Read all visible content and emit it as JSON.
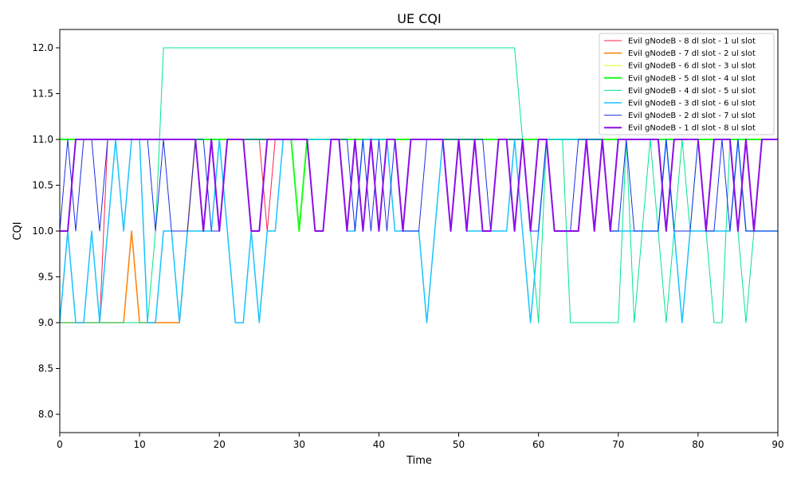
{
  "chart_data": {
    "type": "line",
    "title": "UE CQI",
    "xlabel": "Time",
    "ylabel": "CQI",
    "xlim": [
      0,
      90
    ],
    "ylim": [
      7.8,
      12.2
    ],
    "x_ticks": [
      0,
      10,
      20,
      30,
      40,
      50,
      60,
      70,
      80,
      90
    ],
    "y_ticks": [
      8.0,
      8.5,
      9.0,
      9.5,
      10.0,
      10.5,
      11.0,
      11.5,
      12.0
    ],
    "x_tick_labels": [
      "0",
      "10",
      "20",
      "30",
      "40",
      "50",
      "60",
      "70",
      "80",
      "90"
    ],
    "y_tick_labels": [
      "8.0",
      "8.5",
      "9.0",
      "9.5",
      "10.0",
      "10.5",
      "11.0",
      "11.5",
      "12.0"
    ],
    "grid": false,
    "legend_position": "upper right",
    "series": [
      {
        "name": "Evil gNodeB - 8 dl slot - 1 ul slot",
        "color": "#ff1f4c",
        "width": 1,
        "x": [
          0,
          1,
          2,
          4,
          5,
          6,
          7,
          20,
          21,
          24,
          25,
          26,
          27,
          90
        ],
        "y": [
          9,
          10,
          9,
          9,
          9,
          11,
          11,
          11,
          11,
          11,
          11,
          10,
          11,
          11
        ]
      },
      {
        "name": "Evil gNodeB - 7 dl slot - 2 ul slot",
        "color": "#ff8000",
        "width": 1.5,
        "x": [
          0,
          8,
          9,
          10,
          11,
          15,
          16,
          17,
          90
        ],
        "y": [
          9,
          9,
          10,
          9,
          9,
          9,
          10,
          11,
          11
        ]
      },
      {
        "name": "Evil gNodeB - 6 dl slot - 3 ul slot",
        "color": "#e6ff1a",
        "width": 1,
        "x": [
          0,
          90
        ],
        "y": [
          11,
          11
        ]
      },
      {
        "name": "Evil gNodeB - 5 dl slot - 4 ul slot",
        "color": "#1aff1a",
        "width": 2,
        "x": [
          0,
          29,
          30,
          31,
          90
        ],
        "y": [
          11,
          11,
          10,
          11,
          11
        ]
      },
      {
        "name": "Evil gNodeB - 4 dl slot - 5 ul slot",
        "color": "#00e68c",
        "width": 1,
        "x": [
          0,
          1,
          2,
          3,
          4,
          5,
          6,
          7,
          8,
          9,
          10,
          11,
          12,
          13,
          57,
          58,
          59,
          60,
          61,
          62,
          63,
          64,
          70,
          71,
          72,
          73,
          74,
          75,
          76,
          77,
          78,
          79,
          80,
          81,
          82,
          83,
          84,
          85,
          86,
          87,
          88,
          90
        ],
        "y": [
          9,
          9,
          9,
          9,
          9,
          9,
          9,
          9,
          9,
          9,
          9,
          9,
          10,
          12,
          12,
          11,
          10,
          9,
          11,
          11,
          11,
          9,
          9,
          11,
          9,
          10,
          11,
          10,
          9,
          10,
          11,
          10,
          11,
          10,
          9,
          9,
          11,
          10,
          9,
          10,
          11,
          11
        ]
      },
      {
        "name": "Evil gNodeB - 3 dl slot - 6 ul slot",
        "color": "#19c3ff",
        "width": 1.5,
        "x": [
          0,
          1,
          2,
          3,
          4,
          5,
          6,
          7,
          8,
          9,
          10,
          11,
          12,
          13,
          14,
          15,
          16,
          17,
          18,
          19,
          20,
          21,
          22,
          23,
          24,
          25,
          26,
          27,
          28,
          35,
          36,
          37,
          38,
          39,
          40,
          41,
          42,
          45,
          46,
          47,
          48,
          49,
          50,
          51,
          55,
          56,
          57,
          58,
          59,
          60,
          61,
          62,
          63,
          68,
          69,
          70,
          71,
          75,
          76,
          77,
          78,
          79,
          80,
          84,
          85,
          86,
          87,
          88,
          90
        ],
        "y": [
          9,
          10,
          9,
          9,
          10,
          9,
          10,
          11,
          10,
          11,
          11,
          9,
          9,
          10,
          10,
          9,
          10,
          10,
          10,
          10,
          11,
          10,
          9,
          9,
          10,
          9,
          10,
          10,
          11,
          11,
          10,
          10,
          11,
          11,
          11,
          11,
          10,
          10,
          9,
          10,
          11,
          10,
          11,
          10,
          10,
          10,
          11,
          10,
          9,
          10,
          11,
          11,
          11,
          11,
          10,
          10,
          10,
          10,
          11,
          10,
          9,
          10,
          10,
          10,
          11,
          10,
          10,
          10,
          10
        ]
      },
      {
        "name": "Evil gNodeB - 2 dl slot - 7 ul slot",
        "color": "#1a2ee6",
        "width": 1,
        "x": [
          0,
          1,
          2,
          3,
          4,
          5,
          6,
          11,
          12,
          13,
          14,
          15,
          16,
          17,
          18,
          19,
          20,
          21,
          24,
          25,
          26,
          27,
          28,
          31,
          32,
          33,
          34,
          35,
          36,
          37,
          38,
          39,
          40,
          41,
          42,
          43,
          44,
          45,
          46,
          47,
          52,
          53,
          54,
          55,
          56,
          57,
          58,
          59,
          60,
          61,
          62,
          63,
          64,
          65,
          66,
          67,
          68,
          69,
          70,
          71,
          72,
          73,
          74,
          75,
          76,
          77,
          78,
          79,
          80,
          81,
          82,
          83,
          84,
          85,
          86,
          87,
          88,
          90
        ],
        "y": [
          10,
          11,
          10,
          11,
          11,
          10,
          11,
          11,
          10,
          11,
          10,
          10,
          10,
          11,
          11,
          10,
          10,
          11,
          11,
          11,
          11,
          11,
          11,
          11,
          10,
          10,
          11,
          11,
          11,
          10,
          11,
          10,
          11,
          10,
          11,
          10,
          10,
          10,
          11,
          11,
          11,
          11,
          10,
          11,
          11,
          11,
          11,
          10,
          10,
          11,
          10,
          10,
          10,
          11,
          11,
          11,
          11,
          10,
          10,
          11,
          10,
          10,
          10,
          10,
          11,
          10,
          10,
          10,
          11,
          10,
          10,
          11,
          10,
          11,
          10,
          10,
          10,
          10
        ]
      },
      {
        "name": "Evil gNodeB - 1 dl slot - 8 ul slot",
        "color": "#8c0fe6",
        "width": 2,
        "x": [
          0,
          1,
          2,
          5,
          6,
          17,
          18,
          19,
          20,
          21,
          23,
          24,
          25,
          26,
          31,
          32,
          33,
          34,
          35,
          36,
          37,
          38,
          39,
          40,
          41,
          42,
          43,
          44,
          45,
          48,
          49,
          50,
          51,
          52,
          53,
          54,
          55,
          56,
          57,
          58,
          59,
          60,
          61,
          62,
          65,
          66,
          67,
          68,
          69,
          70,
          71,
          72,
          75,
          76,
          77,
          78,
          80,
          81,
          82,
          83,
          84,
          85,
          86,
          87,
          88,
          89,
          90
        ],
        "y": [
          10,
          10,
          11,
          11,
          11,
          11,
          10,
          11,
          10,
          11,
          11,
          10,
          10,
          11,
          11,
          10,
          10,
          11,
          11,
          10,
          11,
          10,
          11,
          10,
          11,
          11,
          10,
          11,
          11,
          11,
          10,
          11,
          10,
          11,
          10,
          10,
          11,
          11,
          10,
          11,
          10,
          11,
          11,
          10,
          10,
          11,
          10,
          11,
          10,
          11,
          11,
          11,
          11,
          10,
          11,
          11,
          11,
          10,
          11,
          11,
          11,
          10,
          11,
          10,
          11,
          11,
          11
        ]
      }
    ]
  }
}
